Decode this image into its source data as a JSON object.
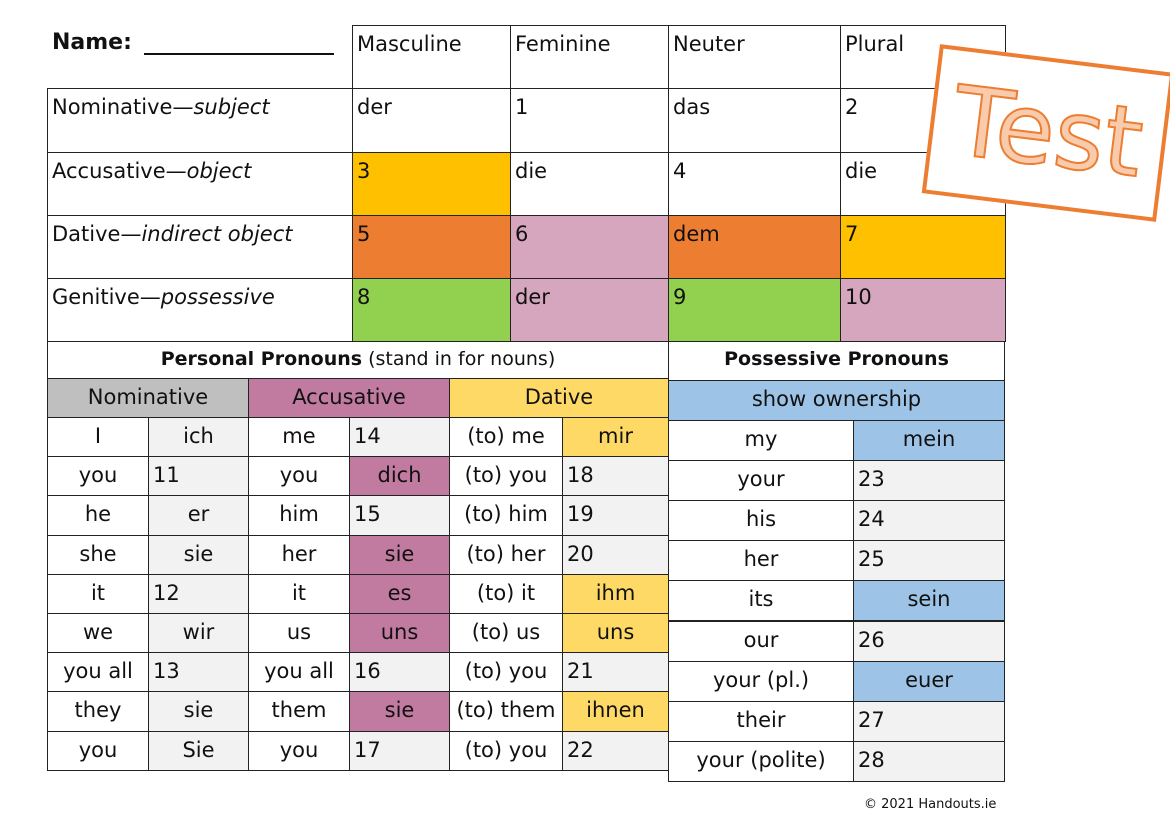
{
  "header": {
    "name_label": "Name:"
  },
  "cases": {
    "columns": [
      "Masculine",
      "Feminine",
      "Neuter",
      "Plural"
    ],
    "rows": [
      {
        "label": "Nominative—",
        "italic": "subject",
        "cells": [
          "der",
          "1",
          "das",
          "2"
        ]
      },
      {
        "label": "Accusative—",
        "italic": "object",
        "cells": [
          "3",
          "die",
          "4",
          "die"
        ]
      },
      {
        "label": "Dative—",
        "italic": "indirect object",
        "cells": [
          "5",
          "6",
          "dem",
          "7"
        ]
      },
      {
        "label": "Genitive—",
        "italic": "possessive",
        "cells": [
          "8",
          "der",
          "9",
          "10"
        ]
      }
    ],
    "colors": [
      [
        "#fff",
        "#fff",
        "#fff",
        "#fff"
      ],
      [
        "#ffc000",
        "#fff",
        "#fff",
        "#fff"
      ],
      [
        "#ed7d31",
        "#d5a6bd",
        "#ed7d31",
        "#ffc000"
      ],
      [
        "#92d050",
        "#d5a6bd",
        "#92d050",
        "#d5a6bd"
      ]
    ]
  },
  "personal": {
    "title_bold": "Personal Pronouns",
    "title_rest": " (stand in for nouns)",
    "groups": [
      {
        "label": "Nominative",
        "color": "#bfbfbf"
      },
      {
        "label": "Accusative",
        "color": "#c27ba0"
      },
      {
        "label": "Dative",
        "color": "#ffd966"
      }
    ],
    "rows": [
      [
        "I",
        "ich",
        "me",
        "14",
        "(to) me",
        "mir"
      ],
      [
        "you",
        "11",
        "you",
        "dich",
        "(to) you",
        "18"
      ],
      [
        "he",
        "er",
        "him",
        "15",
        "(to) him",
        "19"
      ],
      [
        "she",
        "sie",
        "her",
        "sie",
        "(to) her",
        "20"
      ],
      [
        "it",
        "12",
        "it",
        "es",
        "(to) it",
        "ihm"
      ],
      [
        "we",
        "wir",
        "us",
        "uns",
        "(to) us",
        "uns"
      ],
      [
        "you all",
        "13",
        "you all",
        "16",
        "(to) you",
        "21"
      ],
      [
        "they",
        "sie",
        "them",
        "sie",
        "(to) them",
        "ihnen"
      ],
      [
        "you",
        "Sie",
        "you",
        "17",
        "(to) you",
        "22"
      ]
    ],
    "highlight": [
      [
        0,
        5
      ],
      [
        1,
        3
      ],
      [
        3,
        3
      ],
      [
        4,
        3
      ],
      [
        4,
        5
      ],
      [
        5,
        3
      ],
      [
        5,
        5
      ],
      [
        7,
        3
      ],
      [
        7,
        5
      ]
    ]
  },
  "possessive": {
    "title": "Possessive Pronouns",
    "subtitle": "show ownership",
    "color": "#9dc3e6",
    "rows": [
      [
        "my",
        "mein"
      ],
      [
        "your",
        "23"
      ],
      [
        "his",
        "24"
      ],
      [
        "her",
        "25"
      ],
      [
        "its",
        "sein"
      ],
      [
        "our",
        "26"
      ],
      [
        "your (pl.)",
        "euer"
      ],
      [
        "their",
        "27"
      ],
      [
        "your (polite)",
        "28"
      ]
    ],
    "highlight": [
      0,
      4,
      6
    ]
  },
  "stamp": {
    "text": "Test"
  },
  "footer": "© 2021 Handouts.ie"
}
